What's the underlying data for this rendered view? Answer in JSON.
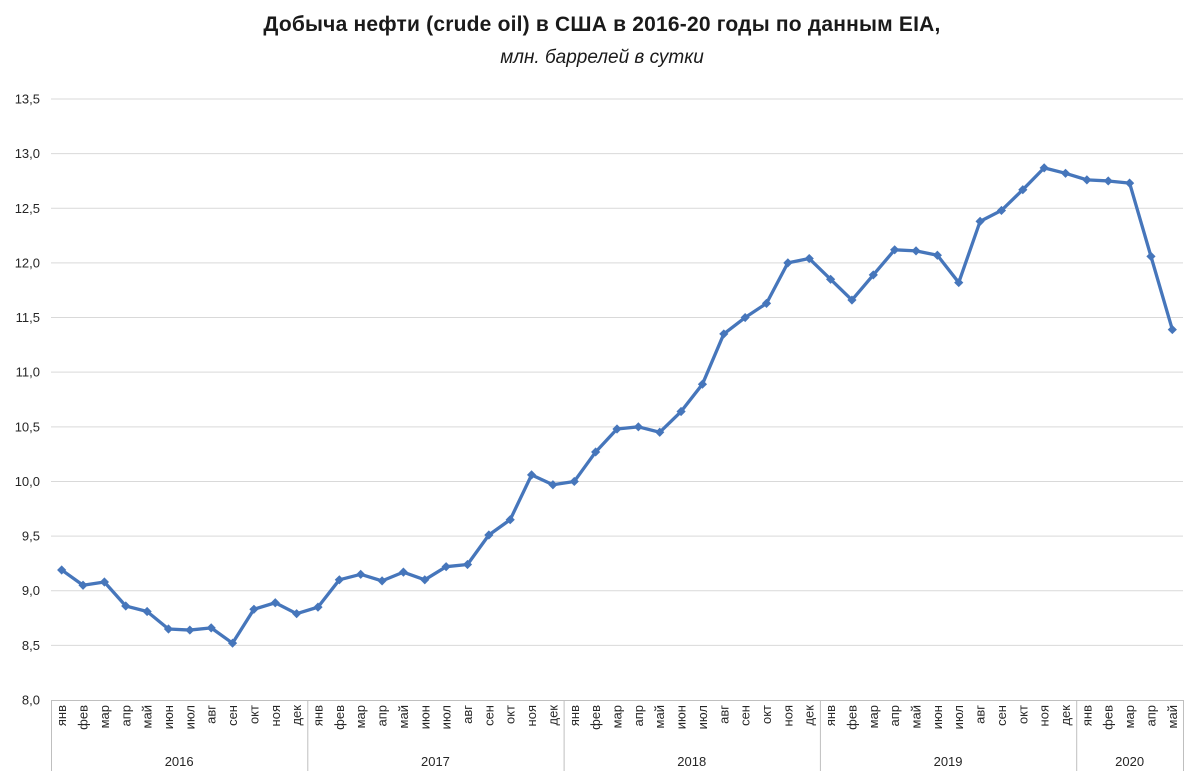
{
  "chart_data": {
    "type": "line",
    "title": "Добыча нефти (crude oil) в США в 2016-20 годы по данным EIA,",
    "subtitle": "млн. баррелей в сутки",
    "xlabel": "",
    "ylabel": "",
    "ylim": [
      8.0,
      13.5
    ],
    "ystep": 0.5,
    "y_tick_labels": [
      "8,0",
      "8,5",
      "9,0",
      "9,5",
      "10,0",
      "10,5",
      "11,0",
      "11,5",
      "12,0",
      "12,5",
      "13,0",
      "13,5"
    ],
    "grid": true,
    "legend_position": "none",
    "decimal_separator": ",",
    "month_names": [
      "янв",
      "фев",
      "мар",
      "апр",
      "май",
      "июн",
      "июл",
      "авг",
      "сен",
      "окт",
      "ноя",
      "дек"
    ],
    "years": [
      {
        "label": "2016",
        "n_months": 12
      },
      {
        "label": "2017",
        "n_months": 12
      },
      {
        "label": "2018",
        "n_months": 12
      },
      {
        "label": "2019",
        "n_months": 12
      },
      {
        "label": "2020",
        "n_months": 5
      }
    ],
    "series": [
      {
        "color": "#4676BB",
        "marker": "diamond",
        "values": [
          9.19,
          9.05,
          9.08,
          8.86,
          8.81,
          8.65,
          8.64,
          8.66,
          8.52,
          8.83,
          8.89,
          8.79,
          8.85,
          9.1,
          9.15,
          9.09,
          9.17,
          9.1,
          9.22,
          9.24,
          9.51,
          9.65,
          10.06,
          9.97,
          10.0,
          10.27,
          10.48,
          10.5,
          10.45,
          10.64,
          10.89,
          11.35,
          11.5,
          11.63,
          12.0,
          12.04,
          11.85,
          11.66,
          11.89,
          12.12,
          12.11,
          12.07,
          11.82,
          12.38,
          12.48,
          12.67,
          12.87,
          12.82,
          12.76,
          12.75,
          12.73,
          12.06,
          11.39
        ]
      }
    ],
    "colors": {
      "gridline": "#D9D9D9",
      "axis_line": "#BFBFBF",
      "axis_text": "#262626",
      "background": "#FFFFFF"
    }
  }
}
